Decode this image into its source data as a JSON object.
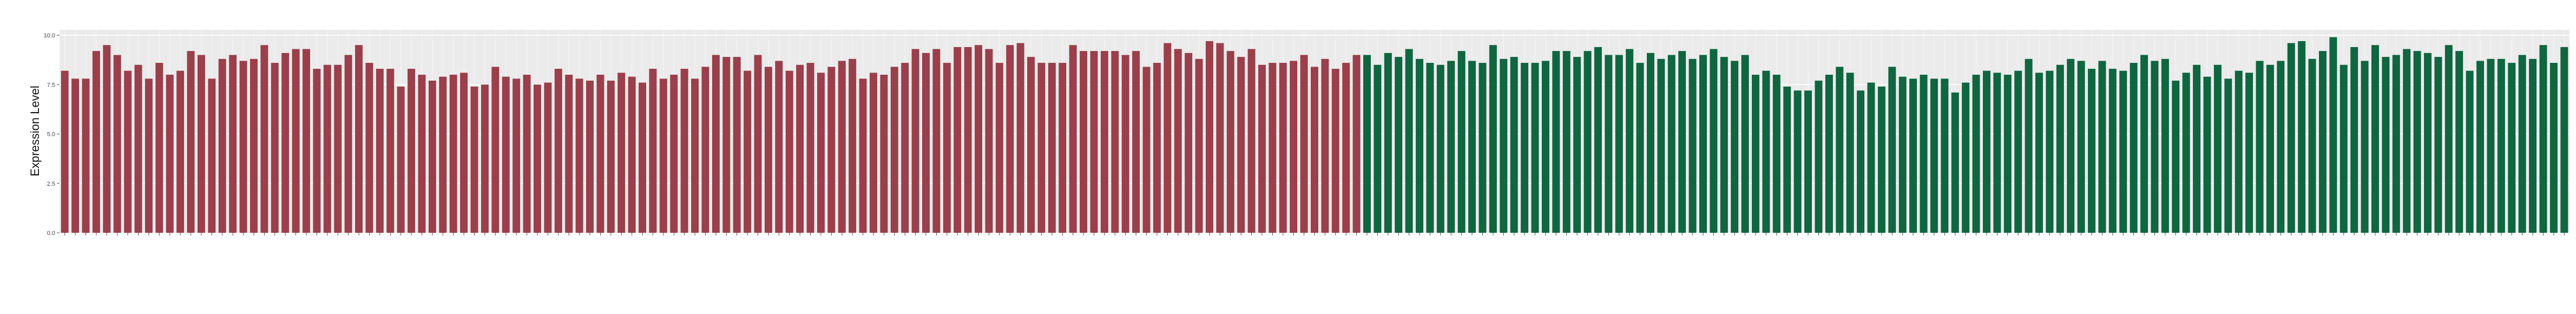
{
  "chart_data": {
    "type": "bar",
    "title": "",
    "xlabel": "",
    "ylabel": "Expression Level",
    "ylim": [
      0,
      10
    ],
    "yticks": [
      "0.0",
      "2.5",
      "5.0",
      "7.5",
      "10.0"
    ],
    "grid": true,
    "legend": "none",
    "x_tick_labels": "sample IDs (illegible at this resolution)",
    "series": [
      {
        "color": "#9a3f4b",
        "values": [
          8.2,
          7.8,
          7.8,
          9.2,
          9.5,
          9.0,
          8.2,
          8.5,
          7.8,
          8.6,
          8.0,
          8.2,
          9.2,
          9.0,
          7.8,
          8.8,
          9.0,
          8.7,
          8.8,
          9.5,
          8.6,
          9.1,
          9.3,
          9.3,
          8.3,
          8.5,
          8.5,
          9.0,
          9.5,
          8.6,
          8.3,
          8.3,
          7.4,
          8.3,
          8.0,
          7.7,
          7.9,
          8.0,
          8.1,
          7.4,
          7.5,
          8.4,
          7.9,
          7.8,
          8.0,
          7.5,
          7.6,
          8.3,
          8.0,
          7.8,
          7.7,
          8.0,
          7.7,
          8.1,
          7.9,
          7.6,
          8.3,
          7.8,
          8.0,
          8.3,
          7.8,
          8.4,
          9.0,
          8.9,
          8.9,
          8.2,
          9.0,
          8.4,
          8.7,
          8.2,
          8.5,
          8.6,
          8.1,
          8.4,
          8.7,
          8.8,
          7.8,
          8.1,
          8.0,
          8.4,
          8.6,
          9.3,
          9.1,
          9.3,
          8.6,
          9.4,
          9.4,
          9.5,
          9.3,
          8.6,
          9.5,
          9.6,
          8.9,
          8.6,
          8.6,
          8.6,
          9.5,
          9.2,
          9.2,
          9.2,
          9.2,
          9.0,
          9.2,
          8.4,
          8.6,
          9.6,
          9.3,
          9.1,
          8.8,
          9.7,
          9.6,
          9.2,
          8.9,
          9.3,
          8.5,
          8.6,
          8.6,
          8.7,
          9.0,
          8.4,
          8.8,
          8.3,
          8.6,
          9.0
        ]
      },
      {
        "color": "#0f6640",
        "values": [
          9.0,
          8.5,
          9.1,
          8.9,
          9.3,
          8.8,
          8.6,
          8.5,
          8.7,
          9.2,
          8.7,
          8.6,
          9.5,
          8.8,
          8.9,
          8.6,
          8.6,
          8.7,
          9.2,
          9.2,
          8.9,
          9.2,
          9.4,
          9.0,
          9.0,
          9.3,
          8.6,
          9.1,
          8.8,
          9.0,
          9.2,
          8.8,
          9.0,
          9.3,
          8.9,
          8.7,
          9.0,
          8.0,
          8.2,
          8.0,
          7.4,
          7.2,
          7.2,
          7.7,
          8.0,
          8.4,
          8.1,
          7.2,
          7.6,
          7.4,
          8.4,
          7.9,
          7.8,
          8.0,
          7.8,
          7.8,
          7.1,
          7.6,
          8.0,
          8.2,
          8.1,
          8.0,
          8.2,
          8.8,
          8.1,
          8.2,
          8.5,
          8.8,
          8.7,
          8.3,
          8.7,
          8.3,
          8.2,
          8.6,
          9.0,
          8.7,
          8.8,
          7.7,
          8.1,
          8.5,
          7.9,
          8.5,
          7.8,
          8.2,
          8.1,
          8.7,
          8.5,
          8.7,
          9.6,
          9.7,
          8.8,
          9.2,
          9.9,
          8.5,
          9.4,
          8.7,
          9.5,
          8.9,
          9.0,
          9.3,
          9.2,
          9.1,
          8.9,
          9.5,
          9.2,
          8.2,
          8.7,
          8.8,
          8.8,
          8.6,
          9.0,
          8.8,
          9.5,
          8.6,
          9.4
        ]
      }
    ]
  }
}
